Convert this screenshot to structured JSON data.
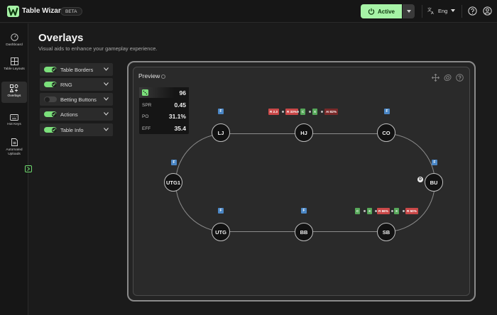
{
  "app": {
    "title": "Table Wizard",
    "badge": "BETA"
  },
  "topbar": {
    "active_label": "Active",
    "language": "Eng"
  },
  "sidebar": {
    "items": [
      {
        "label": "Dashboard"
      },
      {
        "label": "Table Layouts"
      },
      {
        "label": "Overlays"
      },
      {
        "label": "Hot Keys"
      },
      {
        "label": "Automated Uploads"
      }
    ]
  },
  "page": {
    "title": "Overlays",
    "subtitle": "Visual aids to enhance your gameplay experience."
  },
  "overlays": [
    {
      "label": "Table Borders",
      "enabled": true
    },
    {
      "label": "RNG",
      "enabled": true
    },
    {
      "label": "Betting Buttons",
      "enabled": false
    },
    {
      "label": "Actions",
      "enabled": true
    },
    {
      "label": "Table Info",
      "enabled": true
    }
  ],
  "preview": {
    "label": "Preview",
    "stats": {
      "rng": "96",
      "spr_label": "SPR",
      "spr": "0.45",
      "po_label": "PO",
      "po": "31.1%",
      "eff_label": "EFF",
      "eff": "35.4"
    },
    "seats": [
      "LJ",
      "HJ",
      "CO",
      "UTG1",
      "BU",
      "UTG",
      "BB",
      "SB"
    ],
    "fold_badge": "F",
    "dealer_badge": "D",
    "hj_actions": [
      "R 2.3",
      "R 33%",
      "C",
      "X",
      "AI 82%"
    ],
    "sb_actions": [
      "C",
      "X",
      "R 66%",
      "X",
      "R 50%"
    ]
  },
  "colors": {
    "accent": "#a6f3a6",
    "raise": "#c94848",
    "check": "#57a85a",
    "fold": "#4a86c5"
  }
}
